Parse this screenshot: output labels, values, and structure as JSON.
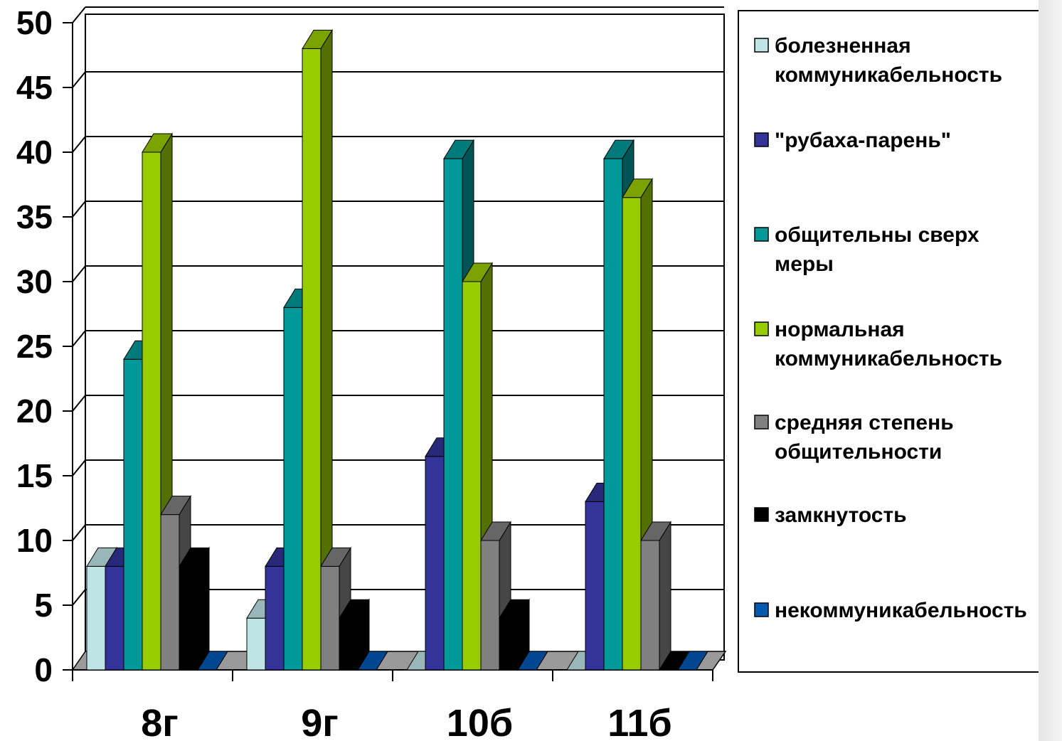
{
  "chart_data": {
    "type": "bar",
    "categories": [
      "8г",
      "9г",
      "10б",
      "11б"
    ],
    "ylim": [
      0,
      50
    ],
    "yticks": [
      0,
      5,
      10,
      15,
      20,
      25,
      30,
      35,
      40,
      45,
      50
    ],
    "grid": true,
    "legend_position": "right",
    "series": [
      {
        "name": "болезненная коммуникабельность",
        "values": [
          8,
          4,
          0,
          0
        ],
        "color": "#bfe4e6"
      },
      {
        "name": "\"рубаха-парень\"",
        "values": [
          8,
          8,
          16.5,
          13
        ],
        "color": "#333399"
      },
      {
        "name": "общительны сверх меры",
        "values": [
          24,
          28,
          39.5,
          39.5
        ],
        "color": "#009999"
      },
      {
        "name": "нормальная коммуникабельность",
        "values": [
          40,
          48,
          30,
          36.5
        ],
        "color": "#99cc00"
      },
      {
        "name": "средняя степень общительности",
        "values": [
          12,
          8,
          10,
          10
        ],
        "color": "#808080"
      },
      {
        "name": "замкнутость",
        "values": [
          8,
          4,
          4,
          0
        ],
        "color": "#000000"
      },
      {
        "name": "некоммуникабельность",
        "values": [
          0,
          0,
          0,
          0
        ],
        "color": "#0059b3"
      }
    ]
  },
  "legend": {
    "entries": [
      {
        "lines": [
          "болезненная",
          "коммуникабельность"
        ]
      },
      {
        "lines": [
          "\"рубаха-парень\""
        ]
      },
      {
        "lines": [
          "общительны сверх",
          "меры"
        ]
      },
      {
        "lines": [
          "нормальная",
          "коммуникабельность"
        ]
      },
      {
        "lines": [
          "средняя степень",
          "общительности"
        ]
      },
      {
        "lines": [
          "замкнутость"
        ]
      },
      {
        "lines": [
          "некоммуникабельность"
        ]
      }
    ]
  }
}
